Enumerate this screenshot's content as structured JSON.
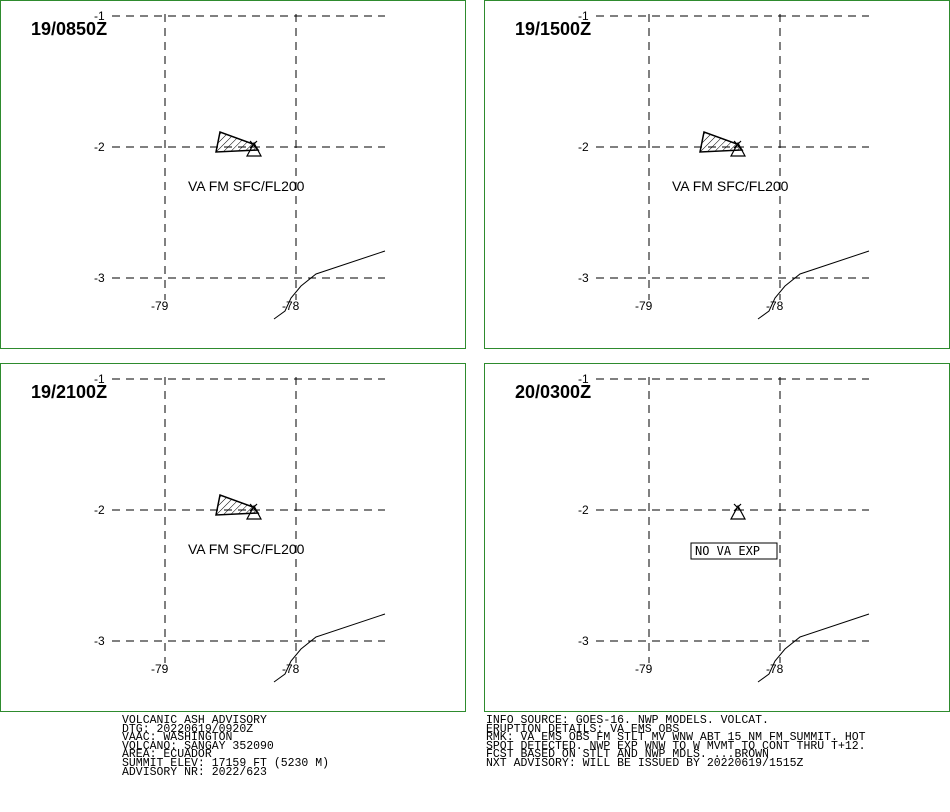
{
  "panels": [
    {
      "time_label": "19/0850Z",
      "layer_label": "VA FM SFC/FL200",
      "no_va": false
    },
    {
      "time_label": "19/1500Z",
      "layer_label": "VA FM SFC/FL200",
      "no_va": false
    },
    {
      "time_label": "19/2100Z",
      "layer_label": "VA FM SFC/FL200",
      "no_va": false
    },
    {
      "time_label": "20/0300Z",
      "layer_label": "NO VA EXP",
      "no_va": true
    }
  ],
  "map_axes": {
    "lat_ticks": [
      "-1",
      "-2",
      "-3"
    ],
    "lon_ticks": [
      "-79",
      "-78"
    ]
  },
  "volcano_symbol": "volcano-triangle-icon",
  "colors": {
    "frame": "#2e8b2e",
    "ink": "#000000"
  },
  "advisory_left": [
    "VOLCANIC ASH ADVISORY",
    "DTG: 20220619/0920Z",
    "VAAC: WASHINGTON",
    "VOLCANO: SANGAY 352090",
    "AREA: ECUADOR",
    "SUMMIT ELEV: 17159 FT (5230 M)",
    "ADVISORY NR: 2022/623"
  ],
  "advisory_right": [
    "INFO SOURCE: GOES-16. NWP MODELS. VOLCAT.",
    "ERUPTION DETAILS: VA EMS OBS",
    "RMK: VA EMS OBS FM STLT MV WNW ABT 15 NM FM SUMMIT. HOT",
    "SPOT DETECTED. NWP EXP WNW TO W MVMT TO CONT THRU T+12.",
    "FCST BASED ON STLT AND NWP MDLS. ...BROWN",
    "NXT ADVISORY: WILL BE ISSUED BY 20220619/1515Z"
  ]
}
